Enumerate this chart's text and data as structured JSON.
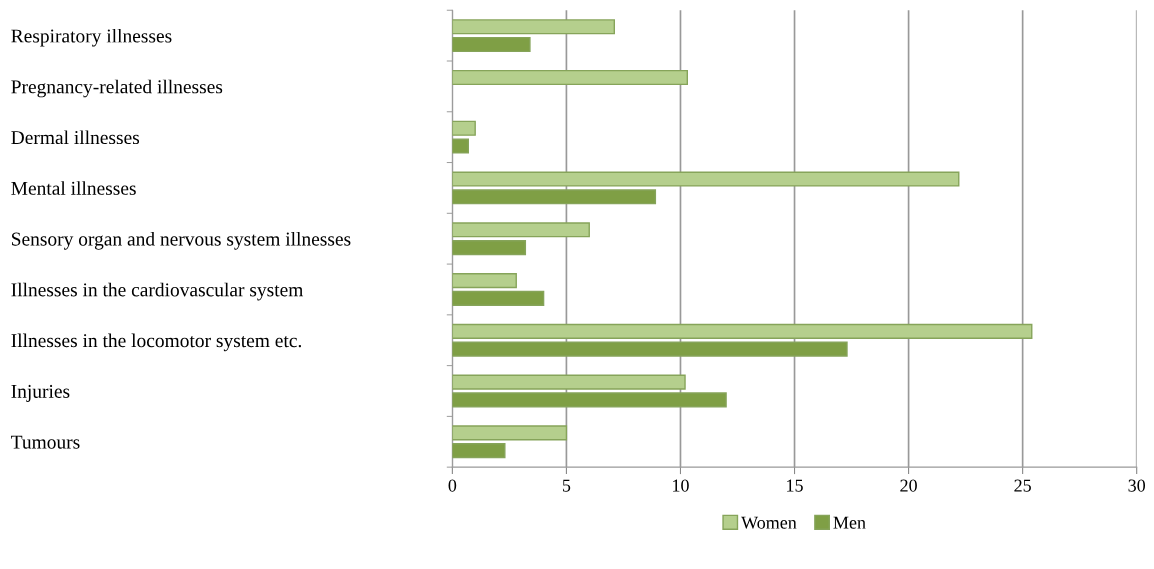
{
  "chart_data": {
    "type": "bar",
    "orientation": "horizontal",
    "categories": [
      "Respiratory illnesses",
      "Pregnancy-related illnesses",
      "Dermal illnesses",
      "Mental illnesses",
      "Sensory organ and nervous system illnesses",
      "Illnesses in the cardiovascular system",
      "Illnesses in the locomotor system etc.",
      "Injuries",
      "Tumours"
    ],
    "series": [
      {
        "name": "Women",
        "color": "#b5cf8d",
        "values": [
          7.1,
          10.3,
          1.0,
          22.2,
          6.0,
          2.8,
          25.4,
          10.2,
          5.0
        ]
      },
      {
        "name": "Men",
        "color": "#7f9f45",
        "values": [
          3.4,
          null,
          0.7,
          8.9,
          3.2,
          4.0,
          17.3,
          12.0,
          2.3
        ]
      }
    ],
    "xlim": [
      0,
      30
    ],
    "xticks": [
      0,
      5,
      10,
      15,
      20,
      25,
      30
    ],
    "grid": "x",
    "legend": "bottom"
  }
}
